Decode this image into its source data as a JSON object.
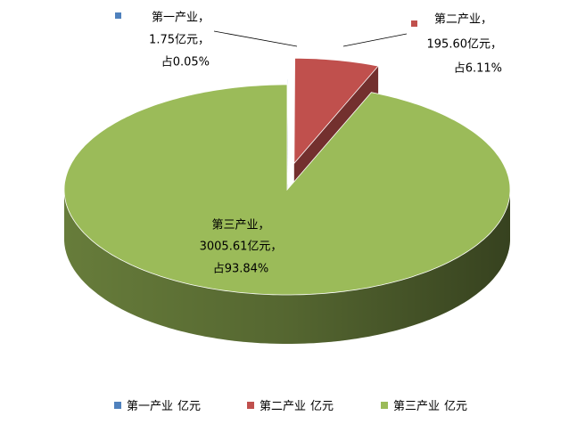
{
  "chart_data": {
    "type": "pie3d",
    "series_name": "亿元",
    "categories": [
      "第一产业",
      "第二产业",
      "第三产业"
    ],
    "category_labels": [
      "第一产业，",
      "第二产业，",
      "第三产业，"
    ],
    "values": [
      1.75,
      195.6,
      3005.61
    ],
    "value_labels": [
      "1.75亿元，",
      "195.60亿元，",
      "3005.61亿元，"
    ],
    "percent_labels": [
      "占0.05%",
      "占6.11%",
      "占93.84%"
    ],
    "colors": [
      "#4f81bd",
      "#c0504d",
      "#9bbb59"
    ],
    "legend": "bottom"
  }
}
